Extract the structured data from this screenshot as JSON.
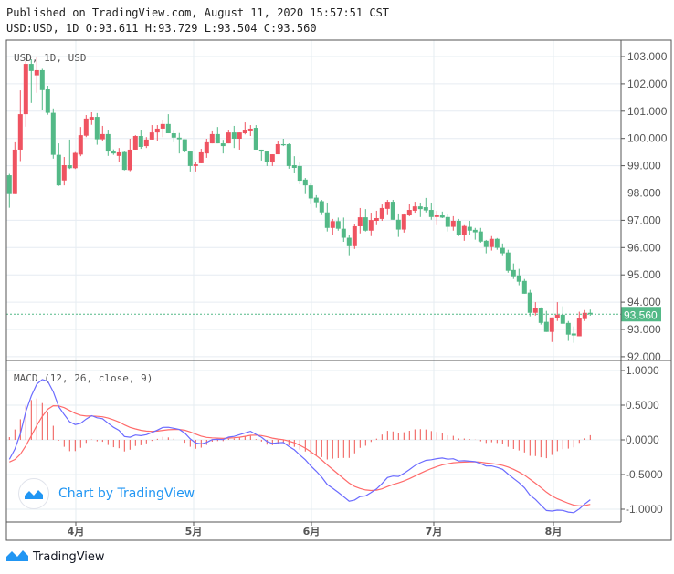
{
  "header": {
    "published": "Published on TradingView.com, August 11, 2020 15:57:51 CST",
    "ohlc_line": "USD:USD, 1D O:93.611 H:93.729 L:93.504 C:93.560"
  },
  "watermark": {
    "text": "Chart by TradingView",
    "icon": "tradingview-logo-icon"
  },
  "footer": {
    "brand": "TradingView",
    "icon": "tradingview-logo-icon"
  },
  "colors": {
    "up": "#ef5361",
    "down": "#53b987",
    "macd": "#6b6bff",
    "signal": "#ff6b6b",
    "histogram": "#ef5350",
    "grid": "#e6ecf2",
    "last_price": "#53b987"
  },
  "chart_data": [
    {
      "type": "candlestick",
      "legend": "USD, 1D, USD",
      "y_ticks": [
        "103.000",
        "102.000",
        "101.000",
        "100.000",
        "99.000",
        "98.000",
        "97.000",
        "96.000",
        "95.000",
        "94.000",
        "93.000",
        "92.000"
      ],
      "ylim": [
        92,
        103
      ],
      "x_ticks": [
        "4月",
        "5月",
        "6月",
        "7月",
        "8月"
      ],
      "last_price": "93.560",
      "grid": true,
      "ohlc": [
        [
          98.65,
          98.7,
          97.46,
          97.96
        ],
        [
          97.96,
          99.86,
          97.96,
          99.59
        ],
        [
          99.59,
          101.76,
          99.17,
          100.89
        ],
        [
          100.89,
          102.84,
          100.43,
          102.73
        ],
        [
          102.73,
          102.9,
          101.3,
          102.47
        ],
        [
          102.31,
          103.0,
          101.67,
          102.5
        ],
        [
          102.5,
          102.55,
          101.06,
          101.77
        ],
        [
          101.8,
          101.93,
          100.87,
          100.94
        ],
        [
          100.94,
          101.1,
          99.26,
          99.4
        ],
        [
          99.4,
          99.82,
          98.26,
          98.28
        ],
        [
          98.46,
          99.32,
          98.28,
          99.02
        ],
        [
          99.02,
          99.96,
          98.88,
          98.91
        ],
        [
          98.91,
          99.5,
          98.88,
          99.47
        ],
        [
          99.41,
          100.42,
          99.35,
          100.12
        ],
        [
          100.1,
          100.86,
          100.05,
          100.73
        ],
        [
          100.68,
          100.96,
          100.5,
          100.79
        ],
        [
          100.79,
          100.93,
          99.77,
          99.97
        ],
        [
          99.97,
          100.46,
          99.9,
          100.16
        ],
        [
          100.16,
          100.29,
          99.36,
          99.52
        ],
        [
          99.52,
          99.6,
          99.4,
          99.45
        ],
        [
          99.36,
          99.65,
          99.15,
          99.49
        ],
        [
          99.5,
          99.52,
          98.83,
          98.85
        ],
        [
          98.84,
          99.99,
          98.8,
          99.59
        ],
        [
          99.59,
          100.12,
          99.59,
          100.09
        ],
        [
          100.09,
          100.29,
          99.62,
          99.69
        ],
        [
          99.72,
          100.05,
          99.65,
          99.96
        ],
        [
          99.96,
          100.49,
          99.96,
          100.22
        ],
        [
          100.22,
          100.49,
          99.89,
          100.36
        ],
        [
          100.36,
          100.67,
          100.05,
          100.53
        ],
        [
          100.53,
          100.89,
          100.19,
          100.19
        ],
        [
          100.19,
          100.28,
          99.86,
          100.03
        ],
        [
          100.03,
          100.2,
          99.45,
          99.97
        ],
        [
          99.97,
          99.97,
          99.49,
          99.52
        ],
        [
          99.52,
          99.52,
          98.79,
          98.99
        ],
        [
          98.99,
          99.15,
          98.79,
          99.05
        ],
        [
          99.09,
          99.62,
          99.09,
          99.49
        ],
        [
          99.45,
          99.99,
          99.29,
          99.86
        ],
        [
          99.82,
          100.26,
          99.82,
          100.16
        ],
        [
          100.16,
          100.42,
          99.82,
          99.82
        ],
        [
          99.82,
          99.95,
          99.45,
          99.72
        ],
        [
          99.82,
          100.32,
          99.82,
          100.22
        ],
        [
          100.22,
          100.46,
          99.65,
          99.99
        ],
        [
          99.99,
          100.22,
          99.59,
          100.22
        ],
        [
          100.19,
          100.59,
          100.15,
          100.29
        ],
        [
          100.26,
          100.49,
          100.09,
          100.36
        ],
        [
          100.39,
          100.49,
          99.59,
          99.59
        ],
        [
          99.59,
          99.59,
          99.19,
          99.52
        ],
        [
          99.52,
          99.55,
          98.99,
          99.15
        ],
        [
          99.12,
          99.42,
          98.99,
          99.42
        ],
        [
          99.42,
          99.89,
          99.42,
          99.79
        ],
        [
          99.79,
          99.99,
          99.72,
          99.75
        ],
        [
          99.79,
          99.82,
          98.89,
          98.99
        ],
        [
          99.02,
          99.35,
          98.72,
          98.92
        ],
        [
          98.99,
          99.12,
          98.32,
          98.45
        ],
        [
          98.49,
          98.55,
          97.96,
          98.28
        ],
        [
          98.28,
          98.35,
          97.62,
          97.8
        ],
        [
          97.83,
          97.92,
          97.46,
          97.66
        ],
        [
          97.7,
          97.75,
          97.19,
          97.29
        ],
        [
          97.29,
          97.65,
          96.59,
          96.72
        ],
        [
          96.72,
          97.05,
          96.45,
          96.97
        ],
        [
          96.97,
          97.1,
          96.62,
          96.69
        ],
        [
          96.69,
          97.1,
          96.21,
          96.36
        ],
        [
          96.36,
          96.46,
          95.72,
          96.05
        ],
        [
          96.05,
          96.88,
          95.95,
          96.78
        ],
        [
          96.78,
          97.45,
          96.52,
          97.11
        ],
        [
          97.11,
          97.41,
          96.59,
          96.62
        ],
        [
          96.62,
          97.28,
          96.42,
          97.01
        ],
        [
          96.98,
          97.35,
          96.82,
          97.08
        ],
        [
          97.05,
          97.58,
          96.98,
          97.45
        ],
        [
          97.42,
          97.75,
          97.19,
          97.68
        ],
        [
          97.68,
          97.75,
          97.02,
          97.02
        ],
        [
          97.02,
          97.25,
          96.39,
          96.66
        ],
        [
          96.66,
          97.25,
          96.55,
          97.21
        ],
        [
          97.18,
          97.61,
          97.15,
          97.38
        ],
        [
          97.35,
          97.68,
          97.28,
          97.51
        ],
        [
          97.51,
          97.65,
          97.12,
          97.41
        ],
        [
          97.48,
          97.82,
          97.29,
          97.36
        ],
        [
          97.38,
          97.65,
          97.02,
          97.12
        ],
        [
          97.12,
          97.35,
          96.82,
          97.18
        ],
        [
          97.18,
          97.32,
          97.08,
          97.1
        ],
        [
          97.12,
          97.22,
          96.59,
          96.76
        ],
        [
          96.76,
          97.15,
          96.62,
          96.98
        ],
        [
          96.98,
          97.05,
          96.42,
          96.45
        ],
        [
          96.45,
          96.82,
          96.25,
          96.79
        ],
        [
          96.76,
          96.98,
          96.45,
          96.62
        ],
        [
          96.65,
          96.72,
          96.29,
          96.56
        ],
        [
          96.59,
          96.72,
          96.18,
          96.22
        ],
        [
          96.25,
          96.28,
          95.79,
          96.02
        ],
        [
          96.02,
          96.42,
          95.89,
          96.32
        ],
        [
          96.32,
          96.35,
          95.92,
          95.99
        ],
        [
          95.99,
          96.15,
          95.72,
          95.79
        ],
        [
          95.82,
          95.92,
          95.08,
          95.15
        ],
        [
          95.18,
          95.42,
          94.85,
          94.95
        ],
        [
          94.98,
          95.22,
          94.62,
          94.75
        ],
        [
          94.78,
          94.85,
          94.31,
          94.31
        ],
        [
          94.35,
          94.45,
          93.48,
          93.61
        ],
        [
          93.61,
          94.0,
          93.51,
          93.77
        ],
        [
          93.77,
          93.81,
          93.18,
          93.24
        ],
        [
          93.28,
          93.68,
          92.91,
          92.91
        ],
        [
          92.91,
          93.44,
          92.54,
          93.44
        ],
        [
          93.41,
          94.0,
          93.31,
          93.54
        ],
        [
          93.54,
          93.85,
          93.21,
          93.21
        ],
        [
          93.24,
          93.31,
          92.58,
          92.81
        ],
        [
          92.85,
          93.11,
          92.51,
          92.78
        ],
        [
          92.75,
          93.65,
          92.75,
          93.4
        ],
        [
          93.38,
          93.71,
          93.31,
          93.61
        ],
        [
          93.611,
          93.729,
          93.504,
          93.56
        ]
      ]
    },
    {
      "type": "line",
      "legend": "MACD (12, 26, close, 9)",
      "y_ticks": [
        "1.0000",
        "0.5000",
        "0.0000",
        "-0.5000",
        "-1.0000"
      ],
      "ylim": [
        -1.2,
        1.05
      ],
      "indicator": {
        "fast": 12,
        "slow": 26,
        "signal": 9,
        "source": "close"
      }
    }
  ]
}
